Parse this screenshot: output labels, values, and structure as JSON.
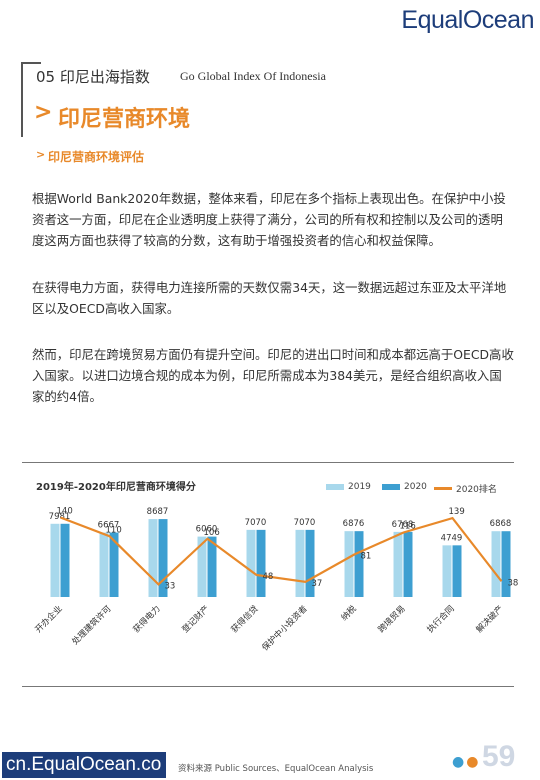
{
  "brand": {
    "logo": "EqualOcean",
    "site": "cn.EqualOcean.co"
  },
  "header": {
    "section_number": "05 印尼出海指数",
    "section_english": "Go Global Index Of Indonesia"
  },
  "title": "印尼营商环境",
  "subtitle": "印尼营商环境评估",
  "paragraphs": [
    "根据World Bank2020年数据，整体来看，印尼在多个指标上表现出色。在保护中小投资者这一方面，印尼在企业透明度上获得了满分，公司的所有权和控制以及公司的透明度这两方面也获得了较高的分数，这有助于增强投资者的信心和权益保障。",
    "在获得电力方面，获得电力连接所需的天数仅需34天，这一数据远超过东亚及太平洋地区以及OECD高收入国家。",
    "然而，印尼在跨境贸易方面仍有提升空间。印尼的进出口时间和成本都远高于OECD高收入国家。以进口边境合规的成本为例，印尼所需成本为384美元，是经合组织高收入国家的约4倍。"
  ],
  "chart_data": {
    "type": "bar",
    "title": "2019年-2020年印尼营商环境得分",
    "categories": [
      "开办企业",
      "处理建筑许可",
      "获得电力",
      "登记财产",
      "获得信贷",
      "保护中小投资者",
      "纳税",
      "跨境贸易",
      "执行合同",
      "解决破产"
    ],
    "series": [
      {
        "name": "2019",
        "type": "bar",
        "color": "#a8d8ec",
        "values": [
          7981,
          6667,
          8687,
          6060,
          7070,
          7070,
          6876,
          6768,
          4749,
          6868
        ]
      },
      {
        "name": "2020",
        "type": "bar",
        "color": "#3d9fd1",
        "values": [
          7981,
          6667,
          8687,
          6060,
          7070,
          7070,
          6876,
          6768,
          4749,
          6868
        ]
      },
      {
        "name": "2020排名",
        "type": "line",
        "color": "#e8892a",
        "values": [
          140,
          110,
          33,
          106,
          48,
          37,
          81,
          116,
          139,
          38
        ]
      }
    ],
    "bar_labels": [
      "7981",
      "6667",
      "8687",
      "6060",
      "7070",
      "7070",
      "6876",
      "6768",
      "4749",
      "6868"
    ]
  },
  "source": "资料来源  Public Sources、EqualOcean Analysis",
  "page_number": "59",
  "colors": {
    "accent": "#e8892a",
    "brand": "#1d3d7a"
  }
}
